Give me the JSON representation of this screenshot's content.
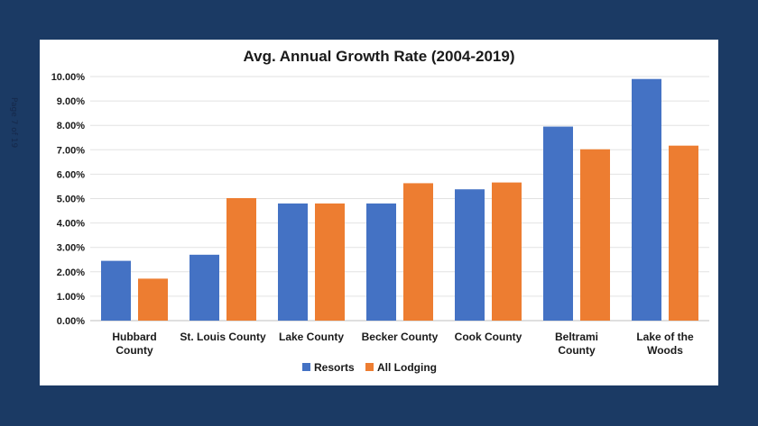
{
  "page_label": "Page 7 of 19",
  "colors": {
    "resorts": "#4472c4",
    "all_lodging": "#ed7d31",
    "background": "#1b3a64"
  },
  "chart_data": {
    "type": "bar",
    "title": "Avg. Annual Growth Rate (2004-2019)",
    "categories": [
      [
        "Hubbard",
        "County"
      ],
      [
        "St. Louis County"
      ],
      [
        "Lake County"
      ],
      [
        "Becker County"
      ],
      [
        "Cook County"
      ],
      [
        "Beltrami",
        "County"
      ],
      [
        "Lake of the",
        "Woods"
      ]
    ],
    "series": [
      {
        "name": "Resorts",
        "values": [
          2.45,
          2.7,
          4.8,
          4.8,
          5.38,
          7.95,
          9.9
        ]
      },
      {
        "name": "All Lodging",
        "values": [
          1.72,
          5.02,
          4.8,
          5.63,
          5.66,
          7.02,
          7.17
        ]
      }
    ],
    "ylim": [
      0,
      10
    ],
    "yticks": [
      "0.00%",
      "1.00%",
      "2.00%",
      "3.00%",
      "4.00%",
      "5.00%",
      "6.00%",
      "7.00%",
      "8.00%",
      "9.00%",
      "10.00%"
    ],
    "grid": true,
    "legend_position": "bottom"
  }
}
